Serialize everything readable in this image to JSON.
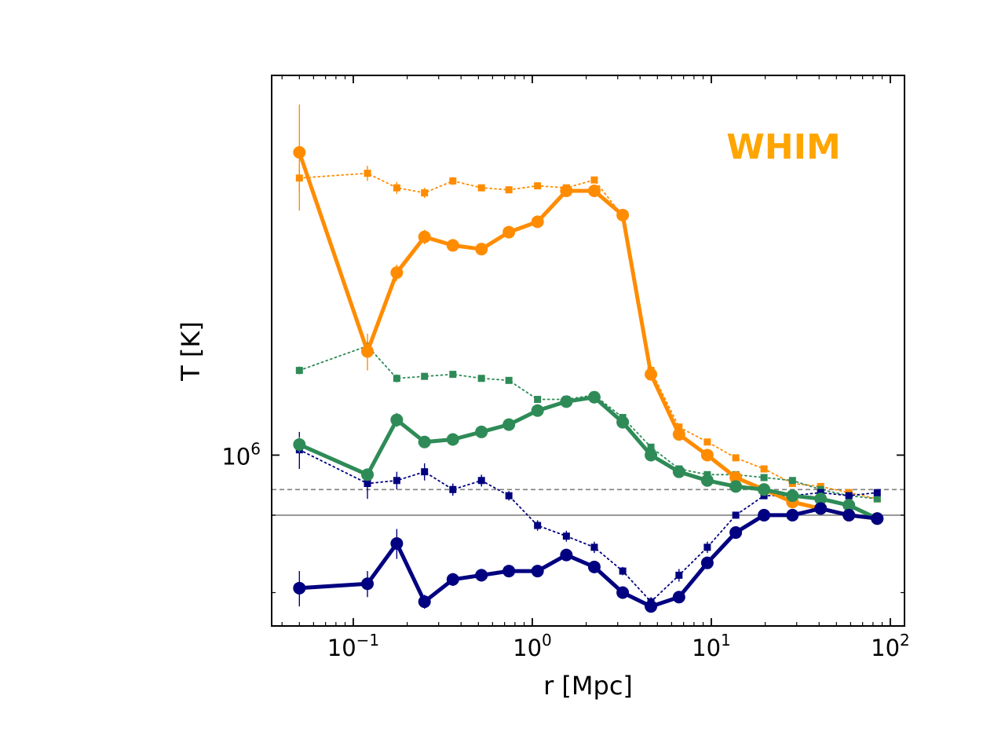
{
  "chart_data": {
    "type": "line",
    "title": "",
    "xlabel": "r [Mpc]",
    "ylabel": "T [K]",
    "xscale": "log",
    "yscale": "log",
    "xlim": [
      0.035,
      120
    ],
    "ylim": [
      530000,
      4100000
    ],
    "x_tick_labels": [
      {
        "value": 0.1,
        "base": "10",
        "exp": "−1"
      },
      {
        "value": 1,
        "base": "10",
        "exp": "0"
      },
      {
        "value": 10,
        "base": "10",
        "exp": "1"
      },
      {
        "value": 100,
        "base": "10",
        "exp": "2"
      }
    ],
    "y_tick_labels": [
      {
        "value": 1000000,
        "base": "10",
        "exp": "6"
      }
    ],
    "y_minor_ticks": [
      800000,
      600000
    ],
    "annotation": {
      "text": "WHIM",
      "color": "#ffa500"
    },
    "hlines": [
      {
        "name": "dashed-reference",
        "y": 880000,
        "color": "#808080",
        "style": "dashed"
      },
      {
        "name": "solid-reference",
        "y": 800000,
        "color": "#808080",
        "style": "solid"
      }
    ],
    "x": [
      0.05,
      0.12,
      0.175,
      0.25,
      0.36,
      0.52,
      0.74,
      1.07,
      1.55,
      2.22,
      3.2,
      4.6,
      6.6,
      9.5,
      13.7,
      19.7,
      28.4,
      40.8,
      58.7,
      84.5
    ],
    "series": [
      {
        "name": "orange-mean",
        "color": "#ff8c00",
        "style": "solid",
        "marker": "circle",
        "y": [
          3080000,
          1470000,
          1970000,
          2250000,
          2180000,
          2150000,
          2290000,
          2380000,
          2670000,
          2670000,
          2440000,
          1350000,
          1080000,
          1000000,
          920000,
          880000,
          840000,
          820000,
          800000,
          790000
        ],
        "yerr": [
          600000,
          100000,
          60000,
          60000,
          30000,
          30000,
          30000,
          30000,
          30000,
          30000,
          30000,
          30000,
          20000,
          20000,
          10000,
          10000,
          10000,
          10000,
          10000,
          10000
        ]
      },
      {
        "name": "orange-median",
        "color": "#ff8c00",
        "style": "dotted",
        "marker": "square",
        "y": [
          2800000,
          2850000,
          2700000,
          2650000,
          2770000,
          2700000,
          2680000,
          2720000,
          2700000,
          2780000,
          2430000,
          1370000,
          1110000,
          1050000,
          990000,
          950000,
          900000,
          890000,
          870000,
          850000
        ],
        "yerr": [
          150000,
          80000,
          60000,
          50000,
          40000,
          30000,
          20000,
          20000,
          20000,
          20000,
          20000,
          20000,
          15000,
          10000,
          10000,
          10000,
          10000,
          10000,
          10000,
          10000
        ]
      },
      {
        "name": "green-mean",
        "color": "#2e8b57",
        "style": "solid",
        "marker": "circle",
        "y": [
          1040000,
          930000,
          1140000,
          1050000,
          1060000,
          1090000,
          1120000,
          1180000,
          1220000,
          1240000,
          1130000,
          1000000,
          940000,
          910000,
          890000,
          880000,
          860000,
          850000,
          830000,
          790000
        ],
        "yerr": [
          30000,
          20000,
          30000,
          20000,
          15000,
          15000,
          15000,
          10000,
          10000,
          10000,
          10000,
          10000,
          10000,
          10000,
          10000,
          10000,
          10000,
          10000,
          10000,
          10000
        ]
      },
      {
        "name": "green-median",
        "color": "#2e8b57",
        "style": "dotted",
        "marker": "square",
        "y": [
          1370000,
          1500000,
          1330000,
          1340000,
          1350000,
          1330000,
          1320000,
          1230000,
          1230000,
          1250000,
          1150000,
          1030000,
          950000,
          930000,
          930000,
          920000,
          910000,
          880000,
          860000,
          850000
        ],
        "yerr": [
          20000,
          30000,
          20000,
          15000,
          15000,
          15000,
          10000,
          10000,
          10000,
          10000,
          10000,
          10000,
          10000,
          10000,
          10000,
          10000,
          10000,
          10000,
          10000,
          10000
        ]
      },
      {
        "name": "navy-mean",
        "color": "#000080",
        "style": "solid",
        "marker": "circle",
        "y": [
          610000,
          620000,
          720000,
          580000,
          630000,
          640000,
          650000,
          650000,
          690000,
          660000,
          600000,
          570000,
          590000,
          670000,
          750000,
          800000,
          800000,
          820000,
          800000,
          790000
        ],
        "yerr": [
          40000,
          30000,
          40000,
          15000,
          15000,
          15000,
          10000,
          10000,
          15000,
          10000,
          10000,
          10000,
          10000,
          10000,
          10000,
          10000,
          10000,
          10000,
          10000,
          10000
        ]
      },
      {
        "name": "navy-median",
        "color": "#000080",
        "style": "dotted",
        "marker": "square",
        "y": [
          1020000,
          900000,
          910000,
          940000,
          880000,
          910000,
          860000,
          770000,
          740000,
          710000,
          650000,
          580000,
          640000,
          710000,
          800000,
          860000,
          860000,
          870000,
          860000,
          870000
        ],
        "yerr": [
          70000,
          50000,
          30000,
          30000,
          20000,
          20000,
          15000,
          15000,
          15000,
          15000,
          10000,
          10000,
          15000,
          15000,
          10000,
          10000,
          10000,
          10000,
          10000,
          10000
        ]
      }
    ]
  }
}
